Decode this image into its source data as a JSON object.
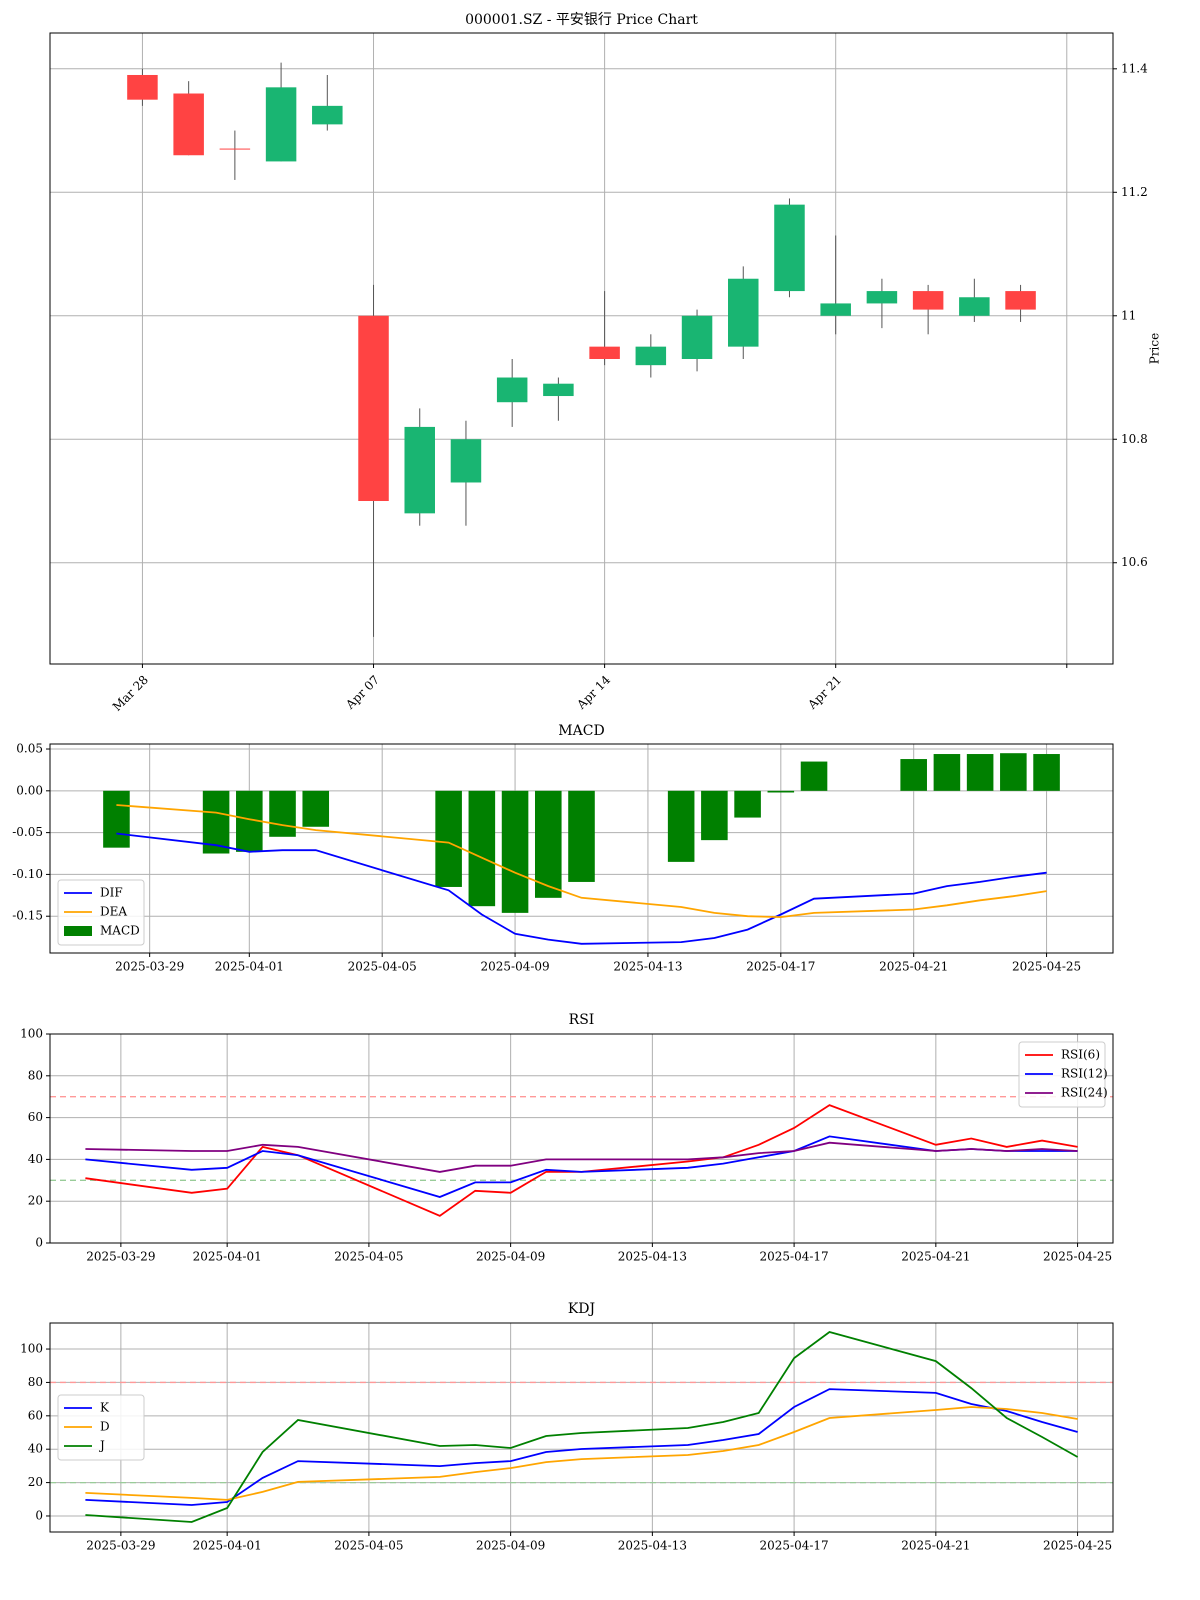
{
  "chart_data": [
    {
      "type": "candlestick",
      "title": "000001.SZ - 平安银行 Price Chart",
      "ylabel": "Price",
      "categories": [
        "Mar 28",
        null,
        null,
        null,
        null,
        "Apr 07",
        null,
        null,
        null,
        null,
        "Apr 14",
        null,
        null,
        null,
        null,
        "Apr 21",
        null,
        null,
        null,
        null
      ],
      "open": [
        11.39,
        11.36,
        11.27,
        11.25,
        11.31,
        11.0,
        10.68,
        10.73,
        10.86,
        10.87,
        10.95,
        10.92,
        10.93,
        10.95,
        11.04,
        11.0,
        11.02,
        11.04,
        11.0,
        11.04
      ],
      "high": [
        11.4,
        11.38,
        11.3,
        11.41,
        11.39,
        11.05,
        10.85,
        10.83,
        10.93,
        10.9,
        11.04,
        10.97,
        11.01,
        11.08,
        11.19,
        11.13,
        11.06,
        11.05,
        11.06,
        11.05
      ],
      "low": [
        11.34,
        11.26,
        11.22,
        11.25,
        11.3,
        10.48,
        10.66,
        10.66,
        10.82,
        10.83,
        10.92,
        10.9,
        10.91,
        10.93,
        11.03,
        10.97,
        10.98,
        10.97,
        10.99,
        10.99
      ],
      "close": [
        11.35,
        11.26,
        11.27,
        11.37,
        11.34,
        10.7,
        10.82,
        10.8,
        10.9,
        10.89,
        10.93,
        10.95,
        11.0,
        11.06,
        11.18,
        11.02,
        11.04,
        11.01,
        11.03,
        11.01
      ],
      "up_color": "#19b572",
      "down_color": "#ff4343",
      "wick_color": "#555555",
      "xlim": [
        -2,
        21
      ],
      "xticks": [
        0,
        5,
        10,
        15,
        20
      ],
      "ylim": [
        10.436,
        11.458
      ],
      "yticks": [
        10.6,
        10.8,
        11.0,
        11.2,
        11.4
      ],
      "y_axis_side": "right",
      "grid": true
    },
    {
      "type": "combo",
      "title": "MACD",
      "x": [
        "2025-03-28",
        "2025-03-31",
        "2025-04-01",
        "2025-04-02",
        "2025-04-03",
        "2025-04-07",
        "2025-04-08",
        "2025-04-09",
        "2025-04-10",
        "2025-04-11",
        "2025-04-14",
        "2025-04-15",
        "2025-04-16",
        "2025-04-17",
        "2025-04-18",
        "2025-04-21",
        "2025-04-22",
        "2025-04-23",
        "2025-04-24",
        "2025-04-25"
      ],
      "series": [
        {
          "name": "DIF",
          "kind": "line",
          "color": "#0000ff",
          "values": [
            -0.051,
            -0.065,
            -0.073,
            -0.071,
            -0.071,
            -0.119,
            -0.148,
            -0.171,
            -0.178,
            -0.183,
            -0.181,
            -0.176,
            -0.166,
            -0.148,
            -0.129,
            -0.123,
            -0.114,
            -0.109,
            -0.103,
            -0.098
          ]
        },
        {
          "name": "DEA",
          "kind": "line",
          "color": "#ffa500",
          "values": [
            -0.017,
            -0.026,
            -0.034,
            -0.041,
            -0.047,
            -0.062,
            -0.08,
            -0.098,
            -0.114,
            -0.128,
            -0.139,
            -0.146,
            -0.15,
            -0.151,
            -0.146,
            -0.142,
            -0.137,
            -0.131,
            -0.126,
            -0.12
          ]
        },
        {
          "name": "MACD",
          "kind": "bar",
          "color": "#008000",
          "values": [
            -0.068,
            -0.075,
            -0.073,
            -0.055,
            -0.043,
            -0.115,
            -0.138,
            -0.146,
            -0.128,
            -0.109,
            -0.085,
            -0.059,
            -0.032,
            -0.002,
            0.035,
            0.038,
            0.044,
            0.044,
            0.045,
            0.044
          ]
        }
      ],
      "xlim": [
        "2025-03-26",
        "2025-04-27"
      ],
      "xticks": [
        "2025-03-29",
        "2025-04-01",
        "2025-04-05",
        "2025-04-09",
        "2025-04-13",
        "2025-04-17",
        "2025-04-21",
        "2025-04-25"
      ],
      "ylim": [
        -0.194,
        0.056
      ],
      "yticks": [
        {
          "value": -0.15,
          "label": "-0.15"
        },
        {
          "value": -0.1,
          "label": "-0.10"
        },
        -0.05,
        {
          "value": 0,
          "label": "0.00"
        },
        0.05
      ],
      "grid": true,
      "legend": "lower left"
    },
    {
      "type": "line",
      "title": "RSI",
      "x": [
        "2025-03-28",
        "2025-03-31",
        "2025-04-01",
        "2025-04-02",
        "2025-04-03",
        "2025-04-07",
        "2025-04-08",
        "2025-04-09",
        "2025-04-10",
        "2025-04-11",
        "2025-04-14",
        "2025-04-15",
        "2025-04-16",
        "2025-04-17",
        "2025-04-18",
        "2025-04-21",
        "2025-04-22",
        "2025-04-23",
        "2025-04-24",
        "2025-04-25"
      ],
      "series": [
        {
          "name": "RSI(6)",
          "color": "#ff0000",
          "values": [
            31,
            24,
            26,
            46,
            42,
            13,
            25,
            24,
            34,
            34,
            39,
            41,
            47,
            55,
            66,
            47,
            50,
            46,
            49,
            46
          ]
        },
        {
          "name": "RSI(12)",
          "color": "#0000ff",
          "values": [
            40,
            35,
            36,
            44,
            42,
            22,
            29,
            29,
            35,
            34,
            36,
            38,
            41,
            44,
            51,
            44,
            45,
            44,
            44,
            44
          ]
        },
        {
          "name": "RSI(24)",
          "color": "#800080",
          "values": [
            45,
            44,
            44,
            47,
            46,
            34,
            37,
            37,
            40,
            40,
            40,
            41,
            43,
            44,
            48,
            44,
            45,
            44,
            45,
            44
          ]
        }
      ],
      "reference_lines": [
        {
          "value": 70,
          "color": "#ff9999"
        },
        {
          "value": 30,
          "color": "#99cc99"
        }
      ],
      "xlim": [
        "2025-03-27",
        "2025-04-26"
      ],
      "xticks": [
        "2025-03-29",
        "2025-04-01",
        "2025-04-05",
        "2025-04-09",
        "2025-04-13",
        "2025-04-17",
        "2025-04-21",
        "2025-04-25"
      ],
      "ylim": [
        0,
        100
      ],
      "yticks": [
        0,
        20,
        40,
        60,
        80,
        100
      ],
      "grid": true,
      "legend": "upper right"
    },
    {
      "type": "line",
      "title": "KDJ",
      "x": [
        "2025-03-28",
        "2025-03-31",
        "2025-04-01",
        "2025-04-02",
        "2025-04-03",
        "2025-04-07",
        "2025-04-08",
        "2025-04-09",
        "2025-04-10",
        "2025-04-11",
        "2025-04-14",
        "2025-04-15",
        "2025-04-16",
        "2025-04-17",
        "2025-04-18",
        "2025-04-21",
        "2025-04-22",
        "2025-04-23",
        "2025-04-24",
        "2025-04-25"
      ],
      "series": [
        {
          "name": "K",
          "color": "#0000ff",
          "values": [
            9.6,
            6.6,
            8.4,
            22.8,
            32.9,
            29.9,
            31.7,
            32.9,
            38.3,
            40.1,
            42.5,
            45.5,
            49.1,
            65.3,
            76.0,
            73.7,
            67.1,
            62.9,
            56.3,
            50.3
          ]
        },
        {
          "name": "D",
          "color": "#ffa500",
          "values": [
            13.8,
            10.8,
            9.6,
            14.4,
            20.4,
            23.4,
            26.3,
            28.7,
            32.3,
            34.1,
            36.5,
            38.9,
            42.5,
            50.3,
            58.7,
            63.5,
            65.3,
            64.1,
            61.7,
            58.1
          ]
        },
        {
          "name": "J",
          "color": "#008000",
          "values": [
            0.6,
            -3.6,
            4.8,
            38.3,
            57.5,
            41.9,
            42.5,
            40.7,
            47.9,
            49.7,
            52.7,
            56.3,
            61.7,
            94.6,
            110.2,
            92.8,
            76.6,
            58.7,
            47.3,
            35.3
          ]
        }
      ],
      "reference_lines": [
        {
          "value": 80,
          "color": "#ff9999"
        },
        {
          "value": 20,
          "color": "#99cc99"
        }
      ],
      "xlim": [
        "2025-03-27",
        "2025-04-26"
      ],
      "xticks": [
        "2025-03-29",
        "2025-04-01",
        "2025-04-05",
        "2025-04-09",
        "2025-04-13",
        "2025-04-17",
        "2025-04-21",
        "2025-04-25"
      ],
      "ylim": [
        -9.6,
        115.6
      ],
      "yticks": [
        0,
        20,
        40,
        60,
        80,
        100
      ],
      "grid": true,
      "legend": "center left"
    }
  ]
}
